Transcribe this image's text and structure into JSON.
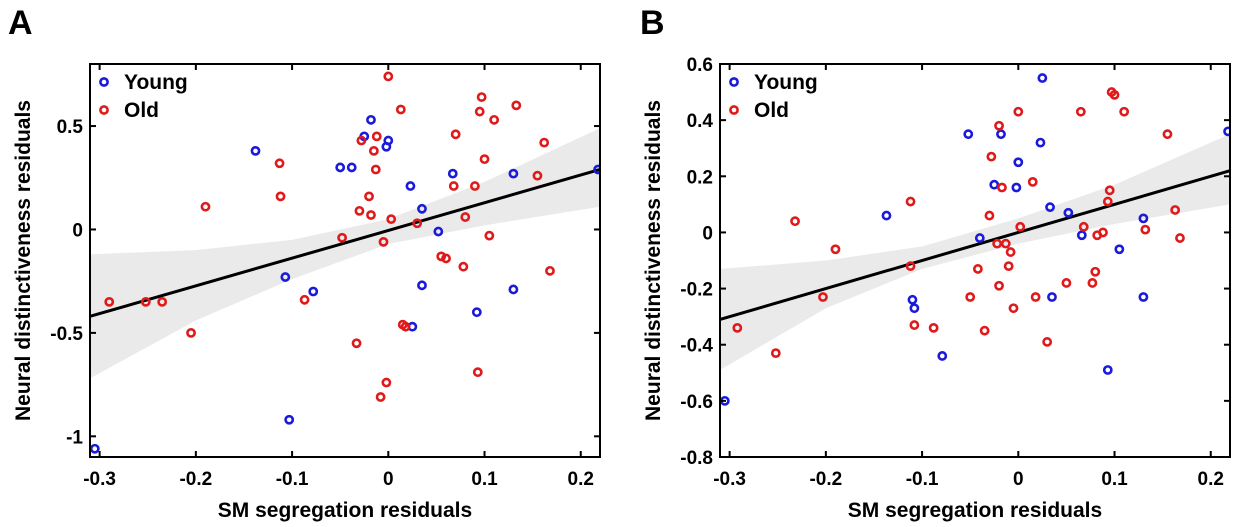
{
  "panels": [
    {
      "letter": "A"
    },
    {
      "letter": "B"
    }
  ],
  "chart_data": [
    {
      "type": "scatter",
      "panel": "A",
      "title": "",
      "xlabel": "SM segregation residuals",
      "ylabel": "Neural distinctiveness residuals",
      "xlim": [
        -0.31,
        0.22
      ],
      "ylim": [
        -1.1,
        0.8
      ],
      "xticks": [
        -0.3,
        -0.2,
        -0.1,
        0,
        0.1,
        0.2
      ],
      "xtick_labels": [
        "-0.3",
        "-0.2",
        "-0.1",
        "0",
        "0.1",
        "0.2"
      ],
      "yticks": [
        -1,
        -0.5,
        0,
        0.5
      ],
      "ytick_labels": [
        "-1",
        "-0.5",
        "0",
        "0.5"
      ],
      "grid": false,
      "legend_position": "top-left",
      "colors": {
        "Young": "#1a1adb",
        "Old": "#e01a1a",
        "fit": "#000000",
        "ci": "#e8e8e8"
      },
      "fit_line": {
        "x": [
          -0.31,
          0.22
        ],
        "y": [
          -0.42,
          0.29
        ]
      },
      "ci_band": {
        "x": [
          -0.31,
          -0.2,
          -0.1,
          0,
          0.1,
          0.22
        ],
        "lower": [
          -0.72,
          -0.44,
          -0.24,
          -0.07,
          0.02,
          0.11
        ],
        "upper": [
          -0.12,
          -0.1,
          -0.05,
          0.05,
          0.23,
          0.49
        ]
      },
      "series": [
        {
          "name": "Young",
          "marker": "open-circle",
          "color": "#1a1adb",
          "x": [
            -0.305,
            -0.138,
            -0.103,
            -0.107,
            -0.078,
            -0.05,
            -0.038,
            -0.025,
            -0.018,
            -0.002,
            0.0,
            0.023,
            0.025,
            0.035,
            0.035,
            0.052,
            0.067,
            0.092,
            0.13,
            0.13,
            0.218
          ],
          "y": [
            -1.06,
            0.38,
            -0.92,
            -0.23,
            -0.3,
            0.3,
            0.3,
            0.45,
            0.53,
            0.4,
            0.43,
            0.21,
            -0.47,
            0.1,
            -0.27,
            -0.01,
            0.27,
            -0.4,
            0.27,
            -0.29,
            0.29
          ]
        },
        {
          "name": "Old",
          "marker": "open-circle",
          "color": "#e01a1a",
          "x": [
            -0.29,
            -0.252,
            -0.235,
            -0.205,
            -0.19,
            -0.113,
            -0.112,
            -0.087,
            -0.048,
            -0.038,
            -0.033,
            -0.03,
            -0.028,
            -0.02,
            -0.018,
            -0.015,
            -0.013,
            -0.012,
            -0.008,
            -0.005,
            -0.002,
            0.0,
            0.003,
            0.013,
            0.015,
            0.018,
            0.03,
            0.055,
            0.06,
            0.068,
            0.07,
            0.078,
            0.08,
            0.09,
            0.093,
            0.095,
            0.097,
            0.1,
            0.105,
            0.11,
            0.133,
            0.155,
            0.162,
            0.168
          ],
          "y": [
            -0.35,
            -0.35,
            -0.35,
            -0.5,
            0.11,
            0.32,
            0.16,
            -0.34,
            -0.04,
            -1.13,
            -0.55,
            0.09,
            0.43,
            0.16,
            0.07,
            0.38,
            0.29,
            0.45,
            -0.81,
            -0.06,
            -0.74,
            0.74,
            0.05,
            0.58,
            -0.46,
            -0.47,
            0.03,
            -0.13,
            -0.14,
            0.21,
            0.46,
            -0.18,
            0.06,
            0.21,
            -0.69,
            0.57,
            0.64,
            0.34,
            -0.03,
            0.53,
            0.6,
            0.26,
            0.42,
            -0.2
          ]
        }
      ]
    },
    {
      "type": "scatter",
      "panel": "B",
      "title": "",
      "xlabel": "SM segregation residuals",
      "ylabel": "Neural distinctiveness residuals",
      "xlim": [
        -0.31,
        0.22
      ],
      "ylim": [
        -0.8,
        0.6
      ],
      "xticks": [
        -0.3,
        -0.2,
        -0.1,
        0,
        0.1,
        0.2
      ],
      "xtick_labels": [
        "-0.3",
        "-0.2",
        "-0.1",
        "0",
        "0.1",
        "0.2"
      ],
      "yticks": [
        -0.8,
        -0.6,
        -0.4,
        -0.2,
        0,
        0.2,
        0.4,
        0.6
      ],
      "ytick_labels": [
        "-0.8",
        "-0.6",
        "-0.4",
        "-0.2",
        "0",
        "0.2",
        "0.4",
        "0.6"
      ],
      "grid": false,
      "legend_position": "top-left",
      "colors": {
        "Young": "#1a1adb",
        "Old": "#e01a1a",
        "fit": "#000000",
        "ci": "#e8e8e8"
      },
      "fit_line": {
        "x": [
          -0.31,
          0.22
        ],
        "y": [
          -0.31,
          0.22
        ]
      },
      "ci_band": {
        "x": [
          -0.31,
          -0.2,
          -0.1,
          0,
          0.1,
          0.22
        ],
        "lower": [
          -0.49,
          -0.27,
          -0.13,
          -0.04,
          0.03,
          0.1
        ],
        "upper": [
          -0.13,
          -0.1,
          -0.05,
          0.05,
          0.17,
          0.35
        ]
      },
      "series": [
        {
          "name": "Young",
          "marker": "open-circle",
          "color": "#1a1adb",
          "x": [
            -0.305,
            -0.137,
            -0.11,
            -0.108,
            -0.079,
            -0.052,
            -0.04,
            -0.025,
            -0.018,
            -0.002,
            0.0,
            0.023,
            0.025,
            0.033,
            0.035,
            0.052,
            0.066,
            0.093,
            0.105,
            0.13,
            0.13,
            0.218
          ],
          "y": [
            -0.6,
            0.06,
            -0.24,
            -0.27,
            -0.44,
            0.35,
            -0.02,
            0.17,
            0.35,
            0.16,
            0.25,
            0.32,
            0.55,
            0.09,
            -0.23,
            0.07,
            -0.01,
            -0.49,
            -0.06,
            -0.23,
            0.05,
            0.36
          ]
        },
        {
          "name": "Old",
          "marker": "open-circle",
          "color": "#e01a1a",
          "x": [
            -0.292,
            -0.252,
            -0.232,
            -0.19,
            -0.203,
            -0.112,
            -0.112,
            -0.108,
            -0.088,
            -0.05,
            -0.042,
            -0.035,
            -0.03,
            -0.028,
            -0.022,
            -0.02,
            -0.02,
            -0.017,
            -0.013,
            -0.01,
            -0.008,
            -0.005,
            0.0,
            0.002,
            0.015,
            0.018,
            0.03,
            0.05,
            0.065,
            0.068,
            0.077,
            0.08,
            0.082,
            0.088,
            0.093,
            0.095,
            0.097,
            0.1,
            0.11,
            0.132,
            0.155,
            0.163,
            0.168
          ],
          "y": [
            -0.34,
            -0.43,
            0.04,
            -0.06,
            -0.23,
            0.11,
            -0.12,
            -0.33,
            -0.34,
            -0.23,
            -0.13,
            -0.35,
            0.06,
            0.27,
            -0.04,
            0.38,
            -0.19,
            0.16,
            -0.04,
            -0.12,
            -0.07,
            -0.27,
            0.43,
            0.02,
            0.18,
            -0.23,
            -0.39,
            -0.18,
            0.43,
            0.02,
            -0.18,
            -0.14,
            -0.01,
            0.0,
            0.11,
            0.15,
            0.5,
            0.49,
            0.43,
            0.01,
            0.35,
            0.08,
            -0.02
          ]
        }
      ]
    }
  ]
}
